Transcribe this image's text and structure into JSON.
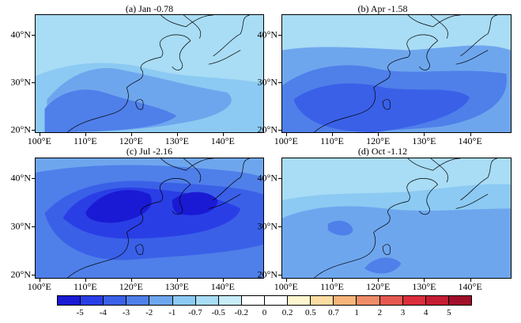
{
  "panels": [
    {
      "title": "(a) Jan -0.78",
      "field_levels": [
        "-0.5",
        "-0.7",
        "-1",
        "-2"
      ]
    },
    {
      "title": "(b) Apr -1.58",
      "field_levels": [
        "-0.5",
        "-1",
        "-2",
        "-3"
      ]
    },
    {
      "title": "(c) Jul -2.16",
      "field_levels": [
        "-1",
        "-2",
        "-3",
        "-4",
        "-5"
      ]
    },
    {
      "title": "(d) Oct -1.12",
      "field_levels": [
        "-0.5",
        "-0.7",
        "-1",
        "-2"
      ]
    }
  ],
  "lat_labels": [
    "40°N",
    "30°N",
    "20°N"
  ],
  "lon_labels": [
    "100°E",
    "110°E",
    "120°E",
    "130°E",
    "140°E"
  ],
  "colorbar": {
    "labels": [
      "-5",
      "-4",
      "-3",
      "-2",
      "-1",
      "-0.7",
      "-0.5",
      "-0.2",
      "0",
      "0.2",
      "0.5",
      "0.7",
      "1",
      "2",
      "3",
      "4",
      "5"
    ],
    "colors": [
      "#1a1ad4",
      "#2a3ee6",
      "#3a60e8",
      "#4f7fe9",
      "#6ea6ee",
      "#8ccaf3",
      "#a9dcf5",
      "#c8ecf8",
      "#ffffff",
      "#fff6d0",
      "#fbdca2",
      "#f6b57b",
      "#ee8c68",
      "#e6584f",
      "#dc2d3d",
      "#c51d34",
      "#a00e2a"
    ]
  },
  "level_colors": {
    "-0.5": "#a9dcf5",
    "-0.7": "#8ccaf3",
    "-1": "#6ea6ee",
    "-2": "#4f7fe9",
    "-3": "#3a60e8",
    "-4": "#2a3ee6",
    "-5": "#1a1ad4"
  }
}
